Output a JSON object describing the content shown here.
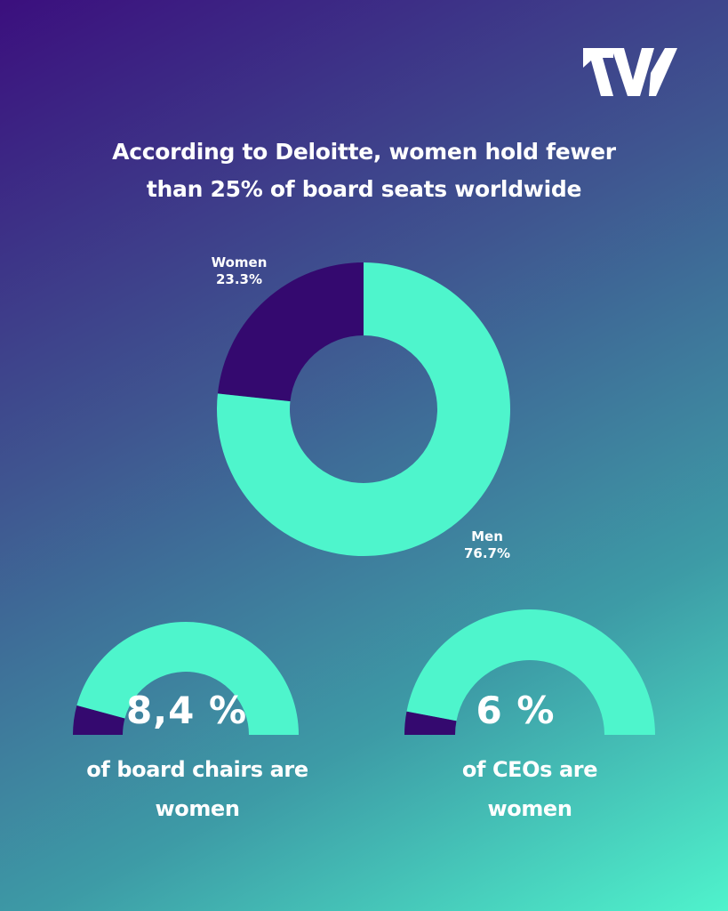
{
  "colors": {
    "primary": "#4ef5cc",
    "secondary": "#34096f",
    "text": "#ffffff"
  },
  "brand": {
    "logo_icon": "w-arrow-logo"
  },
  "headline": {
    "line1": "According to Deloitte, women hold fewer",
    "line2": "than 25% of board seats worldwide"
  },
  "chart_data": [
    {
      "type": "pie",
      "variant": "donut",
      "slices": [
        {
          "label": "Women",
          "value": 23.3,
          "value_text": "23.3%",
          "color": "#34096f"
        },
        {
          "label": "Men",
          "value": 76.7,
          "value_text": "76.7%",
          "color": "#4ef5cc"
        }
      ]
    },
    {
      "type": "pie",
      "variant": "semicircle-gauge",
      "value": 8.4,
      "max": 100,
      "value_text": "8,4 %",
      "caption_line1": "of board chairs are",
      "caption_line2": "women",
      "colors": {
        "value": "#34096f",
        "rest": "#4ef5cc"
      }
    },
    {
      "type": "pie",
      "variant": "semicircle-gauge",
      "value": 6,
      "max": 100,
      "value_text": "6 %",
      "caption_line1": "of CEOs are",
      "caption_line2": "women",
      "colors": {
        "value": "#34096f",
        "rest": "#4ef5cc"
      }
    }
  ]
}
